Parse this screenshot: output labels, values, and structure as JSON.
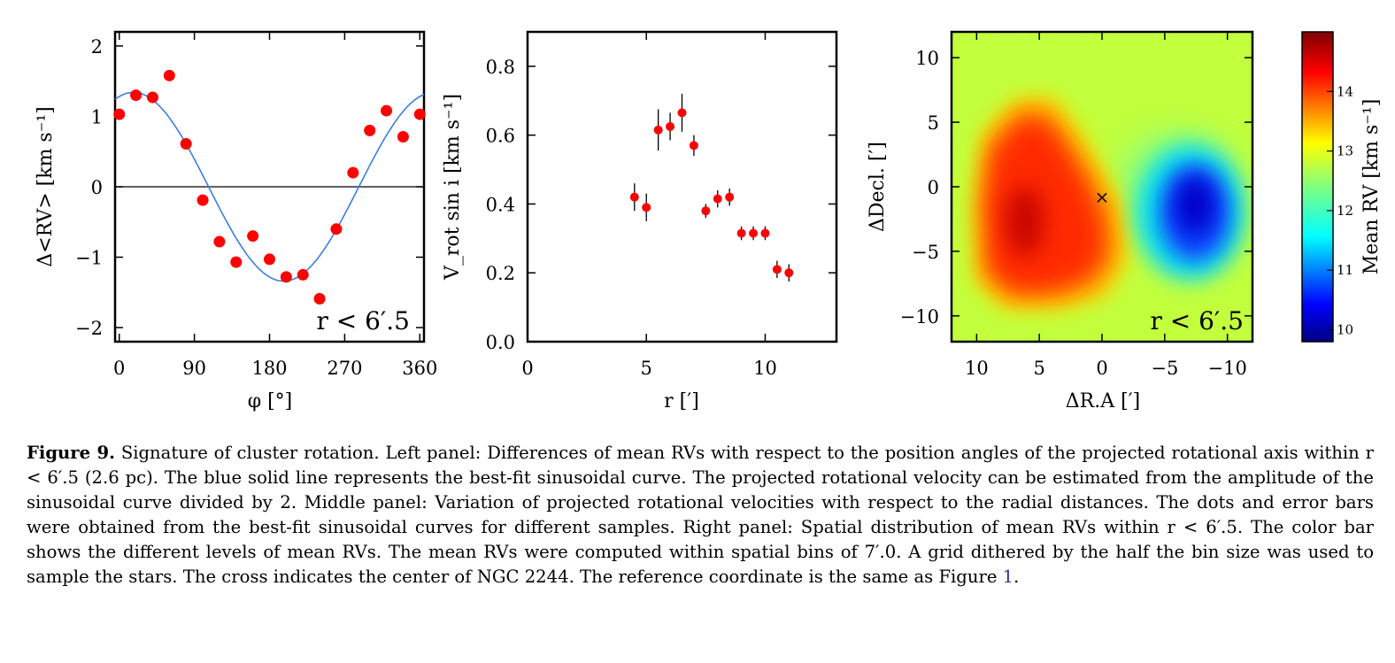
{
  "chart_data": [
    {
      "type": "scatter",
      "panel": "left",
      "xlabel": "φ [°]",
      "ylabel": "Δ<RV> [km s⁻¹]",
      "xlim": [
        -5,
        365
      ],
      "ylim": [
        -2.2,
        2.2
      ],
      "xticks": [
        0,
        90,
        180,
        270,
        360
      ],
      "yticks": [
        -2,
        -1,
        0,
        1,
        2
      ],
      "annotation": "r < 6′.5",
      "reference_line_y": 0,
      "series": [
        {
          "marker": "dot",
          "color": "#ff0000",
          "x": [
            0,
            20,
            40,
            60,
            80,
            100,
            120,
            140,
            160,
            180,
            200,
            220,
            240,
            260,
            280,
            300,
            320,
            340,
            360
          ],
          "y": [
            1.03,
            1.3,
            1.27,
            1.58,
            0.61,
            -0.19,
            -0.78,
            -1.07,
            -0.7,
            -1.03,
            -1.28,
            -1.25,
            -1.59,
            -0.6,
            0.2,
            0.8,
            1.08,
            0.71,
            1.03
          ]
        },
        {
          "name": "best-fit sinusoidal curve",
          "marker": "line",
          "color": "#3a7fe0",
          "function": "sinusoid",
          "amplitude": 1.34,
          "phase_deg": 17
        }
      ]
    },
    {
      "type": "scatter",
      "panel": "middle",
      "xlabel": "r [′]",
      "ylabel": "V_rot sin i [km s⁻¹]",
      "xlim": [
        0,
        13
      ],
      "ylim": [
        0,
        0.9
      ],
      "xticks": [
        0,
        5,
        10
      ],
      "yticks": [
        0.0,
        0.2,
        0.4,
        0.6,
        0.8
      ],
      "ytick_labels": [
        "0.0",
        "0.2",
        "0.4",
        "0.6",
        "0.8"
      ],
      "series": [
        {
          "marker": "dot",
          "color": "#ff0000",
          "x": [
            4.5,
            5.0,
            5.5,
            6.0,
            6.5,
            7.0,
            7.5,
            8.0,
            8.5,
            9.0,
            9.5,
            10.0,
            10.5,
            11.0
          ],
          "y": [
            0.42,
            0.39,
            0.615,
            0.625,
            0.665,
            0.57,
            0.38,
            0.415,
            0.42,
            0.315,
            0.315,
            0.315,
            0.21,
            0.2
          ],
          "err": [
            0.04,
            0.04,
            0.06,
            0.04,
            0.055,
            0.03,
            0.02,
            0.025,
            0.025,
            0.02,
            0.02,
            0.02,
            0.025,
            0.025
          ]
        }
      ]
    },
    {
      "type": "heatmap",
      "panel": "right",
      "xlabel": "ΔR.A [′]",
      "ylabel": "ΔDecl. [′]",
      "xlim": [
        12,
        -12
      ],
      "ylim": [
        -12,
        12
      ],
      "xticks": [
        10,
        5,
        0,
        -5,
        -10
      ],
      "yticks": [
        -10,
        -5,
        0,
        5,
        10
      ],
      "annotation": "r < 6′.5",
      "center_marker": {
        "symbol": "×",
        "x": 0,
        "y": -0.8
      },
      "colorbar": {
        "label": "Mean RV [km s⁻¹]",
        "range": [
          9.8,
          15.0
        ],
        "ticks": [
          10,
          11,
          12,
          13,
          14
        ],
        "colormap": "jet",
        "background_value": 12.75
      },
      "features": [
        {
          "kind": "high-RV region",
          "center": [
            6.5,
            -3
          ],
          "peak_value": 14.6
        },
        {
          "kind": "low-RV region",
          "center": [
            -7,
            -1.5
          ],
          "peak_value": 10.3
        }
      ]
    }
  ],
  "caption": {
    "label": "Figure 9.",
    "text": "Signature of cluster rotation. Left panel: Differences of mean RVs with respect to the position angles of the projected rotational axis within r < 6′.5 (2.6 pc). The blue solid line represents the best-fit sinusoidal curve. The projected rotational velocity can be estimated from the amplitude of the sinusoidal curve divided by 2. Middle panel: Variation of projected rotational velocities with respect to the radial distances. The dots and error bars were obtained from the best-fit sinusoidal curves for different samples. Right panel: Spatial distribution of mean RVs within r < 6′.5. The color bar shows the different levels of mean RVs. The mean RVs were computed within spatial bins of 7′.0. A grid dithered by the half the bin size was used to sample the stars. The cross indicates the center of NGC 2244. The reference coordinate is the same as Figure",
    "ref": "1",
    "end": "."
  }
}
